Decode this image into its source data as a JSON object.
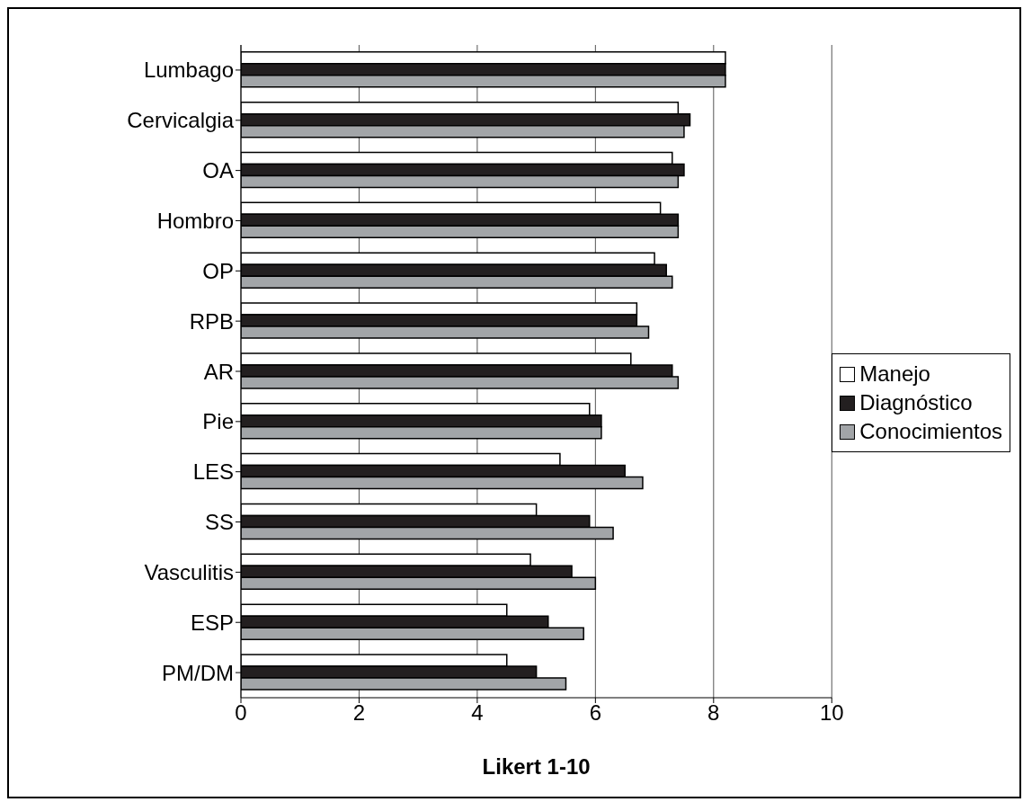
{
  "chart_data": {
    "type": "bar",
    "orientation": "horizontal",
    "xlabel": "Likert 1-10",
    "categories": [
      "Lumbago",
      "Cervicalgia",
      "OA",
      "Hombro",
      "OP",
      "RPB",
      "AR",
      "Pie",
      "LES",
      "SS",
      "Vasculitis",
      "ESP",
      "PM/DM"
    ],
    "series": [
      {
        "name": "Manejo",
        "color": "#ffffff",
        "values": [
          8.2,
          7.4,
          7.3,
          7.1,
          7.0,
          6.7,
          6.6,
          5.9,
          5.4,
          5.0,
          4.9,
          4.5,
          4.5
        ]
      },
      {
        "name": "Diagnóstico",
        "color": "#231f20",
        "values": [
          8.2,
          7.6,
          7.5,
          7.4,
          7.2,
          6.7,
          7.3,
          6.1,
          6.5,
          5.9,
          5.6,
          5.2,
          5.0
        ]
      },
      {
        "name": "Conocimientos",
        "color": "#a2a5a8",
        "values": [
          8.2,
          7.5,
          7.4,
          7.4,
          7.3,
          6.9,
          7.4,
          6.1,
          6.8,
          6.3,
          6.0,
          5.8,
          5.5
        ]
      }
    ],
    "xlim": [
      0,
      10
    ],
    "xticks": [
      0,
      2,
      4,
      6,
      8,
      10
    ],
    "grid": "x",
    "legend": "right"
  }
}
